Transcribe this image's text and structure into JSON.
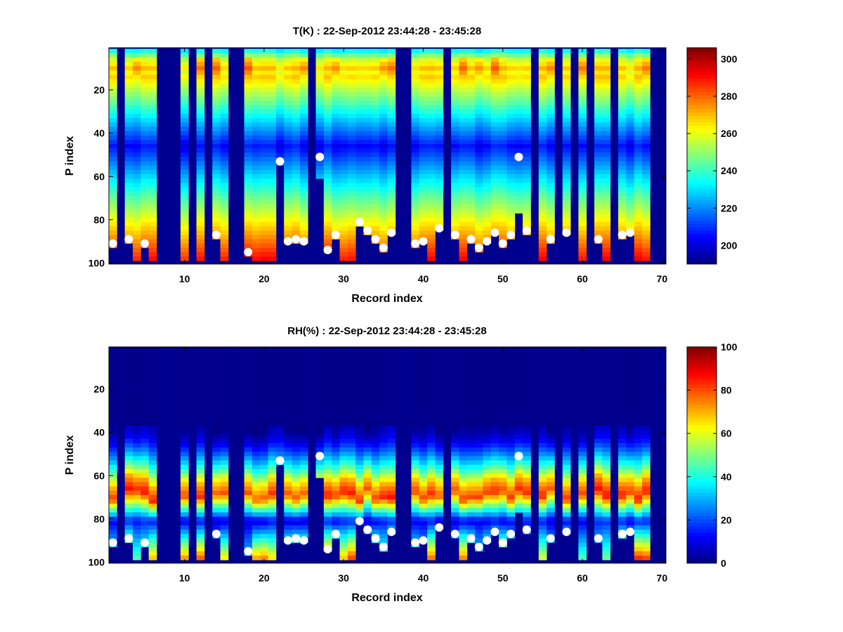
{
  "chart_data": [
    {
      "type": "heatmap",
      "title": "T(K) : 22-Sep-2012 23:44:28 - 23:45:28",
      "xlabel": "Record index",
      "ylabel": "P index",
      "xlim": [
        0.5,
        70.5
      ],
      "ylim": [
        0.5,
        100.5
      ],
      "y_reversed": true,
      "xticks": [
        10,
        20,
        30,
        40,
        50,
        60,
        70
      ],
      "yticks": [
        20,
        40,
        60,
        80,
        100
      ],
      "colormap": "jet",
      "clim": [
        190,
        306
      ],
      "colorbar_ticks": [
        200,
        220,
        240,
        260,
        280,
        300
      ],
      "profile": {
        "top_warm_layer_P": 9,
        "top_T": 235,
        "warm_layer_T": 268,
        "min_T_P": 45,
        "min_T": 205,
        "surface_T": 290
      },
      "markers": "surface P index (white dots)"
    },
    {
      "type": "heatmap",
      "title": "RH(%) : 22-Sep-2012 23:44:28 - 23:45:28",
      "xlabel": "Record index",
      "ylabel": "P index",
      "xlim": [
        0.5,
        70.5
      ],
      "ylim": [
        0.5,
        100.5
      ],
      "y_reversed": true,
      "xticks": [
        10,
        20,
        30,
        40,
        50,
        60,
        70
      ],
      "yticks": [
        20,
        40,
        60,
        80,
        100
      ],
      "colormap": "jet",
      "clim": [
        0,
        100
      ],
      "colorbar_ticks": [
        0,
        20,
        40,
        60,
        80,
        100
      ],
      "profile": {
        "dry_above_P": 36,
        "peak_P": 62,
        "peak_RH": 68,
        "trough_P": 80,
        "trough_RH": 12,
        "surface_RH": 60
      },
      "markers": "surface P index (white dots)"
    }
  ],
  "records": {
    "count": 70,
    "missing": [
      2,
      7,
      8,
      9,
      11,
      13,
      16,
      17,
      26,
      37,
      38,
      43,
      54,
      57,
      59,
      61,
      64,
      69,
      70
    ],
    "data_bottom_P": 98,
    "surface_dots": [
      {
        "record": 1,
        "p": 91
      },
      {
        "record": 3,
        "p": 89
      },
      {
        "record": 5,
        "p": 91
      },
      {
        "record": 14,
        "p": 87
      },
      {
        "record": 18,
        "p": 95
      },
      {
        "record": 22,
        "p": 53
      },
      {
        "record": 23,
        "p": 90
      },
      {
        "record": 24,
        "p": 89
      },
      {
        "record": 25,
        "p": 90
      },
      {
        "record": 27,
        "p": 51
      },
      {
        "record": 28,
        "p": 94
      },
      {
        "record": 29,
        "p": 87
      },
      {
        "record": 32,
        "p": 81
      },
      {
        "record": 33,
        "p": 85
      },
      {
        "record": 34,
        "p": 89
      },
      {
        "record": 35,
        "p": 93
      },
      {
        "record": 36,
        "p": 86
      },
      {
        "record": 39,
        "p": 91
      },
      {
        "record": 40,
        "p": 90
      },
      {
        "record": 42,
        "p": 84
      },
      {
        "record": 44,
        "p": 87
      },
      {
        "record": 46,
        "p": 89
      },
      {
        "record": 47,
        "p": 93
      },
      {
        "record": 48,
        "p": 90
      },
      {
        "record": 49,
        "p": 86
      },
      {
        "record": 50,
        "p": 91
      },
      {
        "record": 51,
        "p": 87
      },
      {
        "record": 52,
        "p": 51
      },
      {
        "record": 53,
        "p": 85
      },
      {
        "record": 56,
        "p": 89
      },
      {
        "record": 58,
        "p": 86
      },
      {
        "record": 62,
        "p": 89
      },
      {
        "record": 65,
        "p": 87
      },
      {
        "record": 66,
        "p": 86
      }
    ],
    "partial_columns": [
      {
        "record": 27,
        "valid_to_P": 60
      },
      {
        "record": 52,
        "valid_to_P": 75
      }
    ]
  },
  "colors": {
    "missing": "#00008f",
    "marker": "#ffffff"
  }
}
